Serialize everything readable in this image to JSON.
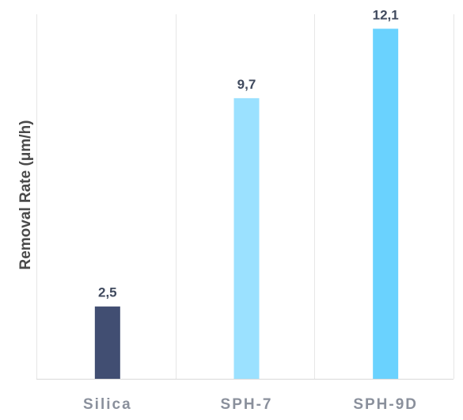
{
  "chart_data": {
    "type": "bar",
    "categories": [
      "Silica",
      "SPH-7",
      "SPH-9D"
    ],
    "values": [
      2.5,
      9.7,
      12.1
    ],
    "data_labels": [
      "2,5",
      "9,7",
      "12,1"
    ],
    "title": "",
    "xlabel": "",
    "ylabel": "Removal Rate (μm/h)",
    "ylim": [
      0,
      12.6
    ],
    "grid": "vertical separators",
    "legend": "none",
    "colors": [
      "#414e72",
      "#9be1ff",
      "#6ad2fe"
    ]
  }
}
